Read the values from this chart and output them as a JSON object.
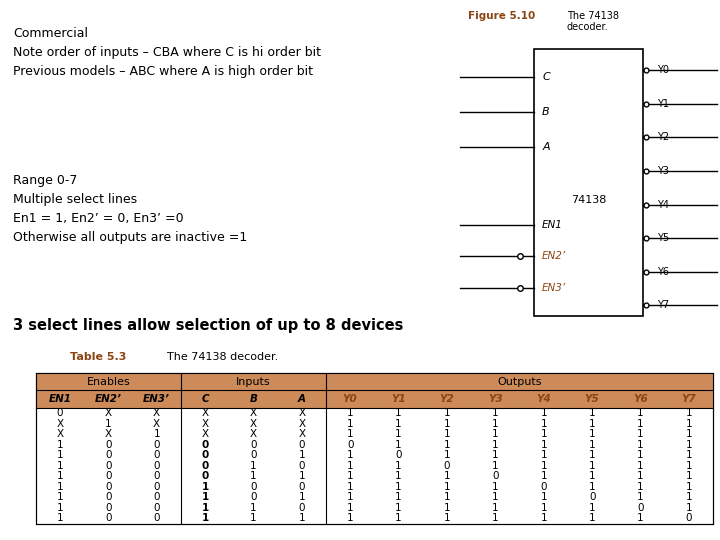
{
  "top_text_line1": "Commercial",
  "top_text_line2": "Note order of inputs – CBA where C is hi order bit",
  "top_text_line3": "Previous models – ABC where A is high order bit",
  "mid_text_line1": "Range 0-7",
  "mid_text_line2": "Multiple select lines",
  "mid_text_line3": "En1 = 1, En2’ = 0, En3’ =0",
  "mid_text_line4": "Otherwise all outputs are inactive =1",
  "bot_text": "3 select lines allow selection of up to 8 devices",
  "top_bg": "#ffffaa",
  "mid_bg": "#aaffdd",
  "bot_bg": "#ffeeaa",
  "fig_label": "Figure 5.10",
  "fig_desc": "The 74138\ndecoder.",
  "fig_label_color": "#8B4513",
  "chip_label": "74138",
  "chip_inputs": [
    "C",
    "B",
    "A"
  ],
  "chip_en_inputs": [
    "EN1",
    "EN2’",
    "EN3’"
  ],
  "chip_outputs": [
    "Y0",
    "Y1",
    "Y2",
    "Y3",
    "Y4",
    "Y5",
    "Y6",
    "Y7"
  ],
  "table_title": "Table 5.3",
  "table_desc": "The 74138 decoder.",
  "table_header_bg": "#cd8b5a",
  "enables_header": "Enables",
  "inputs_header": "Inputs",
  "outputs_header": "Outputs",
  "col_headers": [
    "EN1",
    "EN2’",
    "EN3’",
    "C",
    "B",
    "A",
    "Y0",
    "Y1",
    "Y2",
    "Y3",
    "Y4",
    "Y5",
    "Y6",
    "Y7"
  ],
  "table_data": [
    [
      "0",
      "X",
      "X",
      "X",
      "X",
      "X",
      "1",
      "1",
      "1",
      "1",
      "1",
      "1",
      "1",
      "1"
    ],
    [
      "X",
      "1",
      "X",
      "X",
      "X",
      "X",
      "1",
      "1",
      "1",
      "1",
      "1",
      "1",
      "1",
      "1"
    ],
    [
      "X",
      "X",
      "1",
      "X",
      "X",
      "X",
      "1",
      "1",
      "1",
      "1",
      "1",
      "1",
      "1",
      "1"
    ],
    [
      "1",
      "0",
      "0",
      "0",
      "0",
      "0",
      "0",
      "1",
      "1",
      "1",
      "1",
      "1",
      "1",
      "1"
    ],
    [
      "1",
      "0",
      "0",
      "0",
      "0",
      "1",
      "1",
      "0",
      "1",
      "1",
      "1",
      "1",
      "1",
      "1"
    ],
    [
      "1",
      "0",
      "0",
      "0",
      "1",
      "0",
      "1",
      "1",
      "0",
      "1",
      "1",
      "1",
      "1",
      "1"
    ],
    [
      "1",
      "0",
      "0",
      "0",
      "1",
      "1",
      "1",
      "1",
      "1",
      "0",
      "1",
      "1",
      "1",
      "1"
    ],
    [
      "1",
      "0",
      "0",
      "1",
      "0",
      "0",
      "1",
      "1",
      "1",
      "1",
      "0",
      "1",
      "1",
      "1"
    ],
    [
      "1",
      "0",
      "0",
      "1",
      "0",
      "1",
      "1",
      "1",
      "1",
      "1",
      "1",
      "0",
      "1",
      "1"
    ],
    [
      "1",
      "0",
      "0",
      "1",
      "1",
      "0",
      "1",
      "1",
      "1",
      "1",
      "1",
      "1",
      "0",
      "1"
    ],
    [
      "1",
      "0",
      "0",
      "1",
      "1",
      "1",
      "1",
      "1",
      "1",
      "1",
      "1",
      "1",
      "1",
      "0"
    ]
  ]
}
